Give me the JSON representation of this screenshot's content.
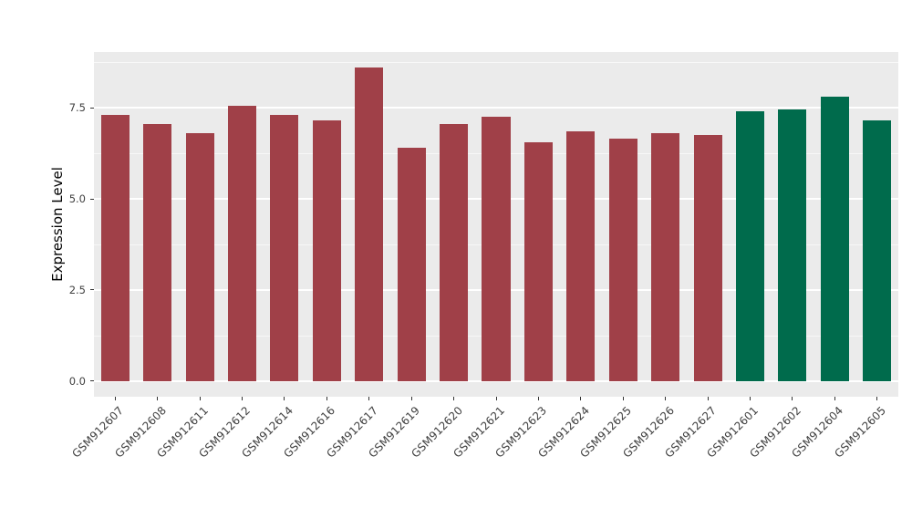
{
  "figure": {
    "background": "#FFFFFF"
  },
  "chart_data": {
    "type": "bar",
    "title": "",
    "xlabel": "",
    "ylabel": "Expression Level",
    "categories": [
      "GSM912607",
      "GSM912608",
      "GSM912611",
      "GSM912612",
      "GSM912614",
      "GSM912616",
      "GSM912617",
      "GSM912619",
      "GSM912620",
      "GSM912621",
      "GSM912623",
      "GSM912624",
      "GSM912625",
      "GSM912626",
      "GSM912627",
      "GSM912601",
      "GSM912602",
      "GSM912604",
      "GSM912605"
    ],
    "values": [
      7.3,
      7.05,
      6.8,
      7.55,
      7.3,
      7.15,
      8.6,
      6.4,
      7.05,
      7.25,
      6.55,
      6.85,
      6.65,
      6.8,
      6.75,
      7.4,
      7.45,
      7.8,
      7.15
    ],
    "group_index": [
      0,
      0,
      0,
      0,
      0,
      0,
      0,
      0,
      0,
      0,
      0,
      0,
      0,
      0,
      0,
      1,
      1,
      1,
      1
    ],
    "series_colors": [
      "#A04048",
      "#006B4C"
    ],
    "yticks": [
      0,
      2.5,
      5,
      7.5
    ],
    "ytick_labels": [
      "0.0",
      "2.5",
      "5.0",
      "7.5"
    ],
    "ylim": [
      0,
      8.6
    ],
    "panel_background": "#EBEBEB",
    "grid_major_color": "#FFFFFF",
    "grid_minor_color": "#FFFFFF",
    "axis_text_color": "#404040",
    "legend_position": "none",
    "grid": "on"
  }
}
